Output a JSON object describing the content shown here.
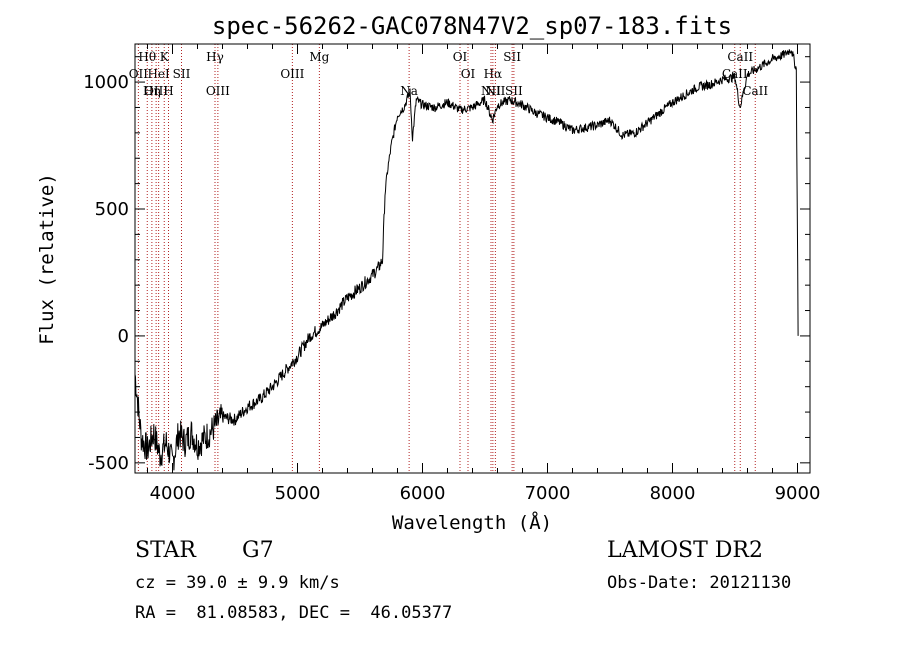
{
  "chart_data": {
    "type": "line",
    "title": "spec-56262-GAC078N47V2_sp07-183.fits",
    "xlabel": "Wavelength (Å)",
    "ylabel": "Flux (relative)",
    "xlim": [
      3700,
      9100
    ],
    "ylim": [
      -540,
      1150
    ],
    "xticks": [
      4000,
      5000,
      6000,
      7000,
      8000,
      9000
    ],
    "yticks": [
      -500,
      0,
      500,
      1000
    ],
    "grid": false,
    "series": [
      {
        "x": [
          3700,
          3750,
          3800,
          3850,
          3900,
          3950,
          4000,
          4050,
          4100,
          4150,
          4200,
          4300,
          4400,
          4500,
          4600,
          4700,
          4800,
          4900,
          5000,
          5100,
          5200,
          5300,
          5400,
          5500,
          5600,
          5650,
          5680,
          5700,
          5720,
          5750,
          5800,
          5850,
          5900,
          5920,
          5950,
          6000,
          6100,
          6200,
          6300,
          6400,
          6500,
          6560,
          6600,
          6700,
          6800,
          6900,
          7000,
          7100,
          7200,
          7300,
          7400,
          7500,
          7600,
          7700,
          7800,
          7900,
          8000,
          8100,
          8200,
          8300,
          8400,
          8500,
          8540,
          8600,
          8700,
          8800,
          8900,
          8950,
          8990,
          9005
        ],
        "y": [
          -150,
          -400,
          -450,
          -380,
          -470,
          -420,
          -500,
          -380,
          -420,
          -380,
          -430,
          -380,
          -320,
          -330,
          -280,
          -250,
          -200,
          -140,
          -80,
          0,
          40,
          90,
          150,
          190,
          240,
          270,
          300,
          560,
          650,
          750,
          870,
          900,
          960,
          780,
          930,
          910,
          900,
          920,
          890,
          900,
          930,
          850,
          910,
          930,
          910,
          880,
          860,
          840,
          810,
          820,
          830,
          850,
          790,
          800,
          840,
          880,
          920,
          950,
          980,
          990,
          1010,
          1020,
          900,
          1030,
          1060,
          1090,
          1110,
          1130,
          1050,
          0
        ]
      }
    ],
    "line_markers": [
      {
        "name": "Hθ",
        "x": 3798,
        "row": 1
      },
      {
        "name": "K",
        "x": 3934,
        "row": 1
      },
      {
        "name": "Hγ",
        "x": 4340,
        "row": 1
      },
      {
        "name": "Mg",
        "x": 5175,
        "row": 1
      },
      {
        "name": "OI",
        "x": 6300,
        "row": 1
      },
      {
        "name": "SII",
        "x": 6717,
        "row": 1
      },
      {
        "name": "CaII",
        "x": 8542,
        "row": 1
      },
      {
        "name": "OII",
        "x": 3727,
        "row": 2
      },
      {
        "name": "HeI",
        "x": 3889,
        "row": 2
      },
      {
        "name": "SII",
        "x": 4072,
        "row": 2
      },
      {
        "name": "OIII",
        "x": 4959,
        "row": 2
      },
      {
        "name": "OI",
        "x": 6364,
        "row": 2
      },
      {
        "name": "Hα",
        "x": 6563,
        "row": 2
      },
      {
        "name": "CaII",
        "x": 8498,
        "row": 2
      },
      {
        "name": "OIII",
        "x": 3869,
        "row": 3
      },
      {
        "name": "Hη",
        "x": 3835,
        "row": 3
      },
      {
        "name": "H",
        "x": 3968,
        "row": 3
      },
      {
        "name": "OIII",
        "x": 4363,
        "row": 3
      },
      {
        "name": "Na",
        "x": 5893,
        "row": 3
      },
      {
        "name": "NII",
        "x": 6548,
        "row": 3
      },
      {
        "name": "NII",
        "x": 6583,
        "row": 3
      },
      {
        "name": "SII",
        "x": 6731,
        "row": 3
      },
      {
        "name": "CaII",
        "x": 8662,
        "row": 3
      }
    ]
  },
  "info": {
    "class_label": "STAR",
    "subclass_label": "G7",
    "survey": "LAMOST DR2",
    "cz_line": "cz = 39.0 ± 9.9 km/s",
    "obs_date": "Obs-Date: 20121130",
    "coords": "RA =  81.08583, DEC =  46.05377"
  }
}
